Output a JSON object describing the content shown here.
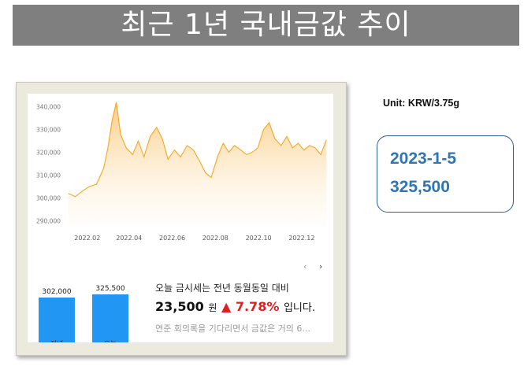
{
  "title": "최근 1년 국내금값  추이",
  "unit_label": "Unit: KRW/3.75g",
  "info": {
    "date": "2023-1-5",
    "price": "325,500"
  },
  "colors": {
    "line": "#f5a623",
    "bar": "#2196f3",
    "up": "#e02020",
    "info_text": "#2e75b6"
  },
  "chart_data": [
    {
      "type": "area",
      "title": "",
      "xlabel": "",
      "ylabel": "",
      "ylim": [
        287000,
        343000
      ],
      "yticks": [
        290000,
        300000,
        310000,
        320000,
        330000,
        340000
      ],
      "ytick_labels": [
        "290,000",
        "300,000",
        "310,000",
        "320,000",
        "330,000",
        "340,000"
      ],
      "xticks": [
        "2022.02",
        "2022.04",
        "2022.06",
        "2022.08",
        "2022.10",
        "2022.12"
      ],
      "x": [
        "2022-01-05",
        "2022-01-15",
        "2022-01-25",
        "2022-02-04",
        "2022-02-14",
        "2022-02-24",
        "2022-03-02",
        "2022-03-08",
        "2022-03-14",
        "2022-03-20",
        "2022-03-28",
        "2022-04-06",
        "2022-04-14",
        "2022-04-22",
        "2022-05-01",
        "2022-05-10",
        "2022-05-18",
        "2022-05-26",
        "2022-06-04",
        "2022-06-13",
        "2022-06-22",
        "2022-07-01",
        "2022-07-10",
        "2022-07-18",
        "2022-07-26",
        "2022-08-04",
        "2022-08-12",
        "2022-08-20",
        "2022-08-28",
        "2022-09-06",
        "2022-09-14",
        "2022-09-22",
        "2022-09-30",
        "2022-10-08",
        "2022-10-16",
        "2022-10-24",
        "2022-11-02",
        "2022-11-10",
        "2022-11-18",
        "2022-11-26",
        "2022-12-04",
        "2022-12-12",
        "2022-12-20",
        "2022-12-28",
        "2023-01-05"
      ],
      "values": [
        302000,
        300500,
        303000,
        305000,
        306000,
        313000,
        322000,
        334000,
        342000,
        328000,
        322000,
        319000,
        325000,
        318000,
        327000,
        331000,
        326000,
        317000,
        321000,
        318000,
        323000,
        321000,
        316000,
        311000,
        309000,
        318000,
        324000,
        320000,
        323000,
        321000,
        319000,
        320000,
        322000,
        330000,
        333000,
        326000,
        323000,
        327000,
        322000,
        324000,
        321000,
        323000,
        322000,
        319000,
        325500
      ],
      "legend": "none",
      "grid": false
    },
    {
      "type": "bar",
      "categories": [
        "전년",
        "오늘"
      ],
      "values": [
        302000,
        325500
      ],
      "value_labels": [
        "302,000",
        "325,500"
      ]
    }
  ],
  "comparison": {
    "line1": "오늘 금시세는 전년 동월동일 대비",
    "diff": "23,500",
    "unit": "원",
    "arrow": "▲",
    "percent": "7.78%",
    "suffix": "입니다.",
    "note": "연준 회의록을 기다리면서 금값은 거의 6..."
  },
  "nav": {
    "prev": "‹",
    "next": "›"
  }
}
